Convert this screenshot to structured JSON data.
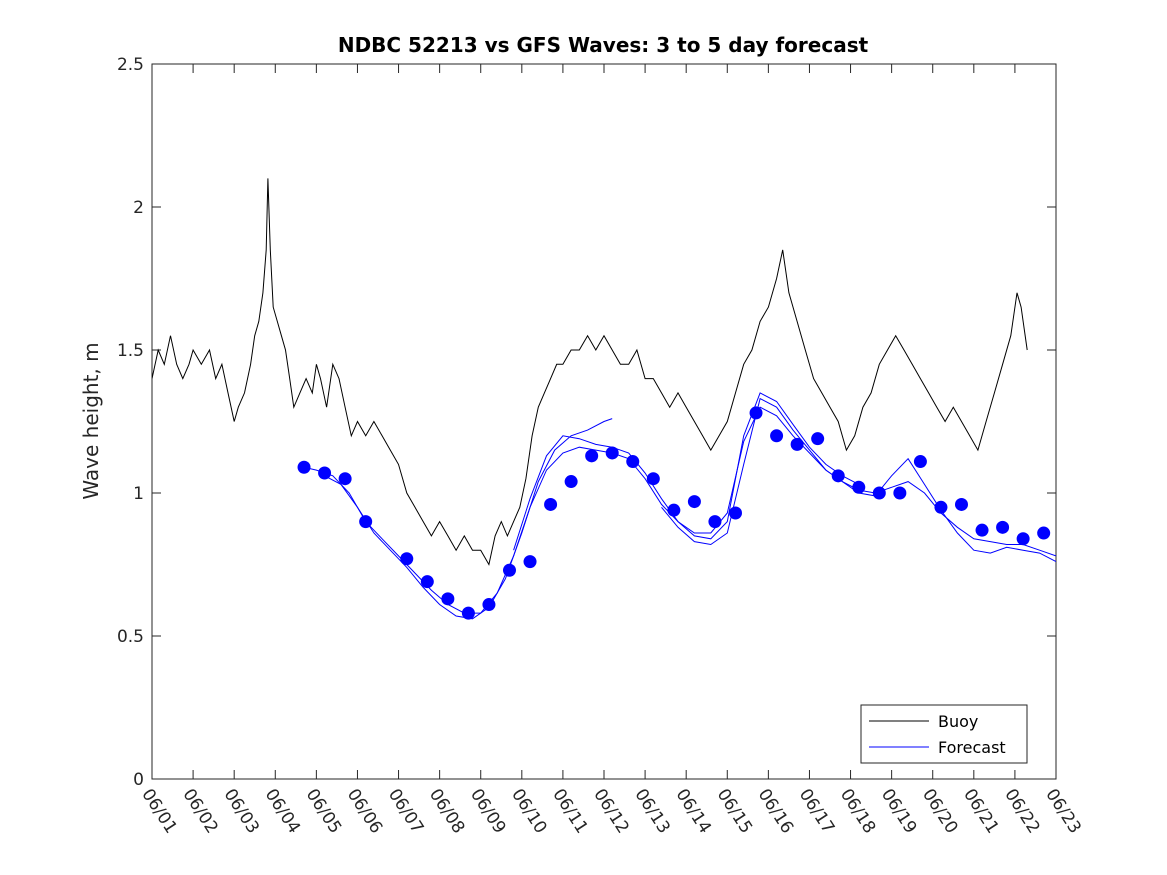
{
  "chart_data": {
    "type": "line",
    "title": "NDBC 52213 vs GFS Waves: 3 to 5 day forecast",
    "xlabel": "",
    "ylabel": "Wave height, m",
    "x_tick_labels": [
      "06/01",
      "06/02",
      "06/03",
      "06/04",
      "06/05",
      "06/06",
      "06/07",
      "06/08",
      "06/09",
      "06/10",
      "06/11",
      "06/12",
      "06/13",
      "06/14",
      "06/15",
      "06/16",
      "06/17",
      "06/18",
      "06/19",
      "06/20",
      "06/21",
      "06/22",
      "06/23"
    ],
    "xlim_days": [
      1,
      23
    ],
    "ylim": [
      0,
      2.5
    ],
    "y_ticks": [
      "0",
      "0.5",
      "1",
      "1.5",
      "2",
      "2.5"
    ],
    "grid": false,
    "legend": {
      "placement": "bottom-right",
      "entries": [
        "Buoy",
        "Forecast"
      ]
    },
    "colors": {
      "buoy": "#000000",
      "forecast": "#0000ff",
      "axes": "#262626"
    },
    "series": [
      {
        "name": "Buoy",
        "style": "line",
        "color": "#000000",
        "points": [
          [
            1.0,
            1.4
          ],
          [
            1.15,
            1.5
          ],
          [
            1.3,
            1.45
          ],
          [
            1.45,
            1.55
          ],
          [
            1.6,
            1.45
          ],
          [
            1.75,
            1.4
          ],
          [
            1.9,
            1.45
          ],
          [
            2.0,
            1.5
          ],
          [
            2.2,
            1.45
          ],
          [
            2.4,
            1.5
          ],
          [
            2.55,
            1.4
          ],
          [
            2.7,
            1.45
          ],
          [
            2.85,
            1.35
          ],
          [
            3.0,
            1.25
          ],
          [
            3.1,
            1.3
          ],
          [
            3.25,
            1.35
          ],
          [
            3.4,
            1.45
          ],
          [
            3.5,
            1.55
          ],
          [
            3.6,
            1.6
          ],
          [
            3.7,
            1.7
          ],
          [
            3.78,
            1.85
          ],
          [
            3.82,
            2.1
          ],
          [
            3.88,
            1.85
          ],
          [
            3.95,
            1.65
          ],
          [
            4.05,
            1.6
          ],
          [
            4.15,
            1.55
          ],
          [
            4.25,
            1.5
          ],
          [
            4.35,
            1.4
          ],
          [
            4.45,
            1.3
          ],
          [
            4.6,
            1.35
          ],
          [
            4.75,
            1.4
          ],
          [
            4.9,
            1.35
          ],
          [
            5.0,
            1.45
          ],
          [
            5.1,
            1.4
          ],
          [
            5.25,
            1.3
          ],
          [
            5.4,
            1.45
          ],
          [
            5.55,
            1.4
          ],
          [
            5.7,
            1.3
          ],
          [
            5.85,
            1.2
          ],
          [
            6.0,
            1.25
          ],
          [
            6.2,
            1.2
          ],
          [
            6.4,
            1.25
          ],
          [
            6.6,
            1.2
          ],
          [
            6.8,
            1.15
          ],
          [
            7.0,
            1.1
          ],
          [
            7.2,
            1.0
          ],
          [
            7.4,
            0.95
          ],
          [
            7.6,
            0.9
          ],
          [
            7.8,
            0.85
          ],
          [
            8.0,
            0.9
          ],
          [
            8.2,
            0.85
          ],
          [
            8.4,
            0.8
          ],
          [
            8.6,
            0.85
          ],
          [
            8.8,
            0.8
          ],
          [
            9.0,
            0.8
          ],
          [
            9.2,
            0.75
          ],
          [
            9.35,
            0.85
          ],
          [
            9.5,
            0.9
          ],
          [
            9.65,
            0.85
          ],
          [
            9.8,
            0.9
          ],
          [
            9.95,
            0.95
          ],
          [
            10.1,
            1.05
          ],
          [
            10.25,
            1.2
          ],
          [
            10.4,
            1.3
          ],
          [
            10.55,
            1.35
          ],
          [
            10.7,
            1.4
          ],
          [
            10.85,
            1.45
          ],
          [
            11.0,
            1.45
          ],
          [
            11.2,
            1.5
          ],
          [
            11.4,
            1.5
          ],
          [
            11.6,
            1.55
          ],
          [
            11.8,
            1.5
          ],
          [
            12.0,
            1.55
          ],
          [
            12.2,
            1.5
          ],
          [
            12.4,
            1.45
          ],
          [
            12.6,
            1.45
          ],
          [
            12.8,
            1.5
          ],
          [
            13.0,
            1.4
          ],
          [
            13.2,
            1.4
          ],
          [
            13.4,
            1.35
          ],
          [
            13.6,
            1.3
          ],
          [
            13.8,
            1.35
          ],
          [
            14.0,
            1.3
          ],
          [
            14.2,
            1.25
          ],
          [
            14.4,
            1.2
          ],
          [
            14.6,
            1.15
          ],
          [
            14.8,
            1.2
          ],
          [
            15.0,
            1.25
          ],
          [
            15.2,
            1.35
          ],
          [
            15.4,
            1.45
          ],
          [
            15.6,
            1.5
          ],
          [
            15.8,
            1.6
          ],
          [
            16.0,
            1.65
          ],
          [
            16.2,
            1.75
          ],
          [
            16.35,
            1.85
          ],
          [
            16.5,
            1.7
          ],
          [
            16.7,
            1.6
          ],
          [
            16.9,
            1.5
          ],
          [
            17.1,
            1.4
          ],
          [
            17.3,
            1.35
          ],
          [
            17.5,
            1.3
          ],
          [
            17.7,
            1.25
          ],
          [
            17.9,
            1.15
          ],
          [
            18.1,
            1.2
          ],
          [
            18.3,
            1.3
          ],
          [
            18.5,
            1.35
          ],
          [
            18.7,
            1.45
          ],
          [
            18.9,
            1.5
          ],
          [
            19.1,
            1.55
          ],
          [
            19.3,
            1.5
          ],
          [
            19.5,
            1.45
          ],
          [
            19.7,
            1.4
          ],
          [
            19.9,
            1.35
          ],
          [
            20.1,
            1.3
          ],
          [
            20.3,
            1.25
          ],
          [
            20.5,
            1.3
          ],
          [
            20.7,
            1.25
          ],
          [
            20.9,
            1.2
          ],
          [
            21.1,
            1.15
          ],
          [
            21.3,
            1.25
          ],
          [
            21.5,
            1.35
          ],
          [
            21.7,
            1.45
          ],
          [
            21.9,
            1.55
          ],
          [
            22.05,
            1.7
          ],
          [
            22.15,
            1.65
          ],
          [
            22.3,
            1.5
          ]
        ]
      },
      {
        "name": "Forecast",
        "style": "line",
        "color": "#0000ff",
        "points": [
          [
            4.7,
            1.09
          ],
          [
            5.0,
            1.08
          ],
          [
            5.4,
            1.06
          ],
          [
            5.8,
            1.0
          ],
          [
            6.2,
            0.9
          ],
          [
            6.6,
            0.84
          ],
          [
            7.0,
            0.78
          ],
          [
            7.4,
            0.72
          ],
          [
            7.8,
            0.66
          ],
          [
            8.2,
            0.61
          ],
          [
            8.6,
            0.58
          ],
          [
            9.0,
            0.58
          ],
          [
            9.4,
            0.65
          ],
          [
            9.8,
            0.78
          ],
          [
            10.2,
            0.95
          ],
          [
            10.6,
            1.08
          ],
          [
            11.0,
            1.14
          ],
          [
            11.4,
            1.16
          ],
          [
            11.8,
            1.15
          ],
          [
            12.2,
            1.14
          ],
          [
            12.6,
            1.12
          ],
          [
            13.0,
            1.05
          ],
          [
            13.4,
            0.96
          ],
          [
            13.8,
            0.9
          ],
          [
            14.2,
            0.86
          ],
          [
            14.6,
            0.86
          ],
          [
            15.0,
            0.93
          ],
          [
            15.4,
            1.18
          ],
          [
            15.8,
            1.3
          ],
          [
            16.2,
            1.27
          ],
          [
            16.6,
            1.2
          ],
          [
            17.0,
            1.14
          ],
          [
            17.4,
            1.08
          ],
          [
            17.8,
            1.04
          ],
          [
            18.2,
            1.01
          ],
          [
            18.6,
            1.0
          ],
          [
            19.0,
            1.02
          ],
          [
            19.4,
            1.04
          ],
          [
            19.8,
            1.0
          ],
          [
            20.2,
            0.93
          ],
          [
            20.6,
            0.88
          ],
          [
            21.0,
            0.84
          ],
          [
            21.4,
            0.83
          ],
          [
            21.8,
            0.82
          ],
          [
            22.2,
            0.82
          ],
          [
            22.6,
            0.8
          ],
          [
            23.0,
            0.78
          ]
        ]
      },
      {
        "name": "",
        "style": "line",
        "color": "#0000ff",
        "points": [
          [
            5.2,
            1.06
          ],
          [
            5.6,
            1.03
          ],
          [
            6.0,
            0.95
          ],
          [
            6.4,
            0.86
          ],
          [
            6.8,
            0.8
          ],
          [
            7.2,
            0.74
          ],
          [
            7.6,
            0.67
          ],
          [
            8.0,
            0.61
          ],
          [
            8.4,
            0.57
          ],
          [
            8.8,
            0.56
          ],
          [
            9.2,
            0.6
          ],
          [
            9.6,
            0.7
          ],
          [
            10.0,
            0.86
          ],
          [
            10.4,
            1.04
          ],
          [
            10.8,
            1.15
          ],
          [
            11.2,
            1.2
          ],
          [
            11.6,
            1.22
          ],
          [
            12.0,
            1.25
          ],
          [
            12.2,
            1.26
          ]
        ]
      },
      {
        "name": "",
        "style": "line",
        "color": "#0000ff",
        "points": [
          [
            9.8,
            0.8
          ],
          [
            10.2,
            0.98
          ],
          [
            10.6,
            1.13
          ],
          [
            11.0,
            1.2
          ],
          [
            11.4,
            1.19
          ],
          [
            11.8,
            1.17
          ],
          [
            12.2,
            1.16
          ],
          [
            12.6,
            1.14
          ],
          [
            13.0,
            1.07
          ],
          [
            13.4,
            0.98
          ],
          [
            13.8,
            0.9
          ],
          [
            14.2,
            0.85
          ],
          [
            14.6,
            0.84
          ],
          [
            15.0,
            0.9
          ],
          [
            15.4,
            1.2
          ],
          [
            15.8,
            1.35
          ],
          [
            16.2,
            1.32
          ],
          [
            16.6,
            1.24
          ],
          [
            17.0,
            1.16
          ],
          [
            17.4,
            1.1
          ],
          [
            17.8,
            1.06
          ],
          [
            18.2,
            1.03
          ]
        ]
      },
      {
        "name": "",
        "style": "line",
        "color": "#0000ff",
        "points": [
          [
            13.4,
            0.95
          ],
          [
            13.8,
            0.88
          ],
          [
            14.2,
            0.83
          ],
          [
            14.6,
            0.82
          ],
          [
            15.0,
            0.86
          ],
          [
            15.4,
            1.1
          ],
          [
            15.8,
            1.33
          ],
          [
            16.2,
            1.3
          ],
          [
            16.6,
            1.22
          ],
          [
            17.0,
            1.15
          ],
          [
            17.4,
            1.08
          ],
          [
            17.8,
            1.04
          ],
          [
            18.2,
            1.0
          ],
          [
            18.6,
            0.99
          ],
          [
            19.0,
            1.06
          ],
          [
            19.4,
            1.12
          ],
          [
            19.8,
            1.03
          ],
          [
            20.2,
            0.94
          ],
          [
            20.6,
            0.86
          ],
          [
            21.0,
            0.8
          ],
          [
            21.4,
            0.79
          ],
          [
            21.8,
            0.81
          ],
          [
            22.2,
            0.8
          ],
          [
            22.6,
            0.79
          ],
          [
            23.0,
            0.76
          ]
        ]
      },
      {
        "name": "",
        "style": "markers",
        "color": "#0000ff",
        "points": [
          [
            4.7,
            1.09
          ],
          [
            5.2,
            1.07
          ],
          [
            5.7,
            1.05
          ],
          [
            6.2,
            0.9
          ],
          [
            7.2,
            0.77
          ],
          [
            7.7,
            0.69
          ],
          [
            8.2,
            0.63
          ],
          [
            8.7,
            0.58
          ],
          [
            9.2,
            0.61
          ],
          [
            9.7,
            0.73
          ],
          [
            10.2,
            0.76
          ],
          [
            10.7,
            0.96
          ],
          [
            11.2,
            1.04
          ],
          [
            11.7,
            1.13
          ],
          [
            12.2,
            1.14
          ],
          [
            12.7,
            1.11
          ],
          [
            13.2,
            1.05
          ],
          [
            13.7,
            0.94
          ],
          [
            14.2,
            0.97
          ],
          [
            14.7,
            0.9
          ],
          [
            15.2,
            0.93
          ],
          [
            15.7,
            1.28
          ],
          [
            16.2,
            1.2
          ],
          [
            16.7,
            1.17
          ],
          [
            17.2,
            1.19
          ],
          [
            17.7,
            1.06
          ],
          [
            18.2,
            1.02
          ],
          [
            18.7,
            1.0
          ],
          [
            19.2,
            1.0
          ],
          [
            19.7,
            1.11
          ],
          [
            20.2,
            0.95
          ],
          [
            20.7,
            0.96
          ],
          [
            21.2,
            0.87
          ],
          [
            21.7,
            0.88
          ],
          [
            22.2,
            0.84
          ],
          [
            22.7,
            0.86
          ]
        ]
      }
    ]
  }
}
